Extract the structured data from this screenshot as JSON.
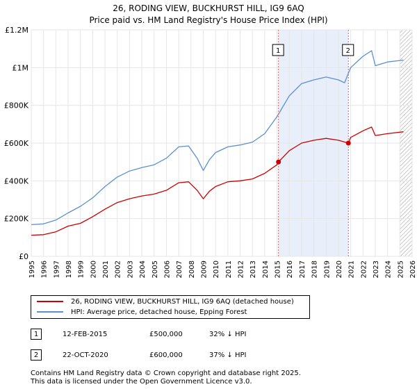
{
  "header": {
    "title": "26, RODING VIEW, BUCKHURST HILL, IG9 6AQ",
    "subtitle": "Price paid vs. HM Land Registry's House Price Index (HPI)"
  },
  "colors": {
    "property_line": "#cc0000",
    "hpi_line": "#5b8fd0",
    "shaded_span": "#e8eefa",
    "marker_line": "#e06060"
  },
  "chart_data": {
    "type": "line",
    "title": "26, RODING VIEW, BUCKHURST HILL, IG9 6AQ",
    "subtitle": "Price paid vs. HM Land Registry's House Price Index (HPI)",
    "xlabel": "",
    "ylabel": "",
    "xlim": [
      1995,
      2026
    ],
    "ylim": [
      0,
      1200000
    ],
    "x_ticks": [
      1995,
      1996,
      1997,
      1998,
      1999,
      2000,
      2001,
      2002,
      2003,
      2004,
      2005,
      2006,
      2007,
      2008,
      2009,
      2010,
      2011,
      2012,
      2013,
      2014,
      2015,
      2016,
      2017,
      2018,
      2019,
      2020,
      2021,
      2022,
      2023,
      2024,
      2025,
      2026
    ],
    "y_ticks": [
      {
        "value": 0,
        "label": "£0"
      },
      {
        "value": 200000,
        "label": "£200K"
      },
      {
        "value": 400000,
        "label": "£400K"
      },
      {
        "value": 600000,
        "label": "£600K"
      },
      {
        "value": 800000,
        "label": "£800K"
      },
      {
        "value": 1000000,
        "label": "£1M"
      },
      {
        "value": 1200000,
        "label": "£1.2M"
      }
    ],
    "grid": true,
    "shaded_span": [
      2015.12,
      2020.81
    ],
    "hatched_from": 2025.0,
    "series": [
      {
        "name": "26, RODING VIEW, BUCKHURST HILL, IG9 6AQ (detached house)",
        "x": [
          1995,
          1996,
          1997,
          1998,
          1999,
          2000,
          2001,
          2002,
          2003,
          2004,
          2005,
          2006,
          2007,
          2007.8,
          2008.5,
          2009,
          2009.5,
          2010,
          2011,
          2012,
          2013,
          2014,
          2015,
          2015.12,
          2016,
          2017,
          2018,
          2019,
          2020,
          2020.81,
          2021,
          2022,
          2022.7,
          2023,
          2024,
          2025.3
        ],
        "values": [
          112000,
          115000,
          130000,
          160000,
          175000,
          210000,
          250000,
          285000,
          305000,
          320000,
          330000,
          350000,
          390000,
          395000,
          350000,
          305000,
          345000,
          370000,
          395000,
          400000,
          410000,
          440000,
          485000,
          500000,
          560000,
          600000,
          615000,
          625000,
          615000,
          600000,
          630000,
          665000,
          685000,
          640000,
          650000,
          660000
        ]
      },
      {
        "name": "HPI: Average price, detached house, Epping Forest",
        "x": [
          1995,
          1996,
          1997,
          1998,
          1999,
          2000,
          2001,
          2002,
          2003,
          2004,
          2005,
          2006,
          2007,
          2007.8,
          2008.5,
          2009,
          2009.5,
          2010,
          2011,
          2012,
          2013,
          2014,
          2015,
          2016,
          2017,
          2018,
          2019,
          2020,
          2020.5,
          2021,
          2022,
          2022.7,
          2023,
          2024,
          2025.3
        ],
        "values": [
          168000,
          172000,
          192000,
          230000,
          265000,
          310000,
          370000,
          420000,
          452000,
          470000,
          485000,
          520000,
          580000,
          585000,
          520000,
          455000,
          512000,
          550000,
          580000,
          590000,
          605000,
          650000,
          740000,
          850000,
          915000,
          935000,
          950000,
          935000,
          920000,
          1000000,
          1060000,
          1090000,
          1010000,
          1030000,
          1040000
        ]
      }
    ],
    "annotations": [
      {
        "label": "1",
        "x": 2015.12,
        "value": 500000
      },
      {
        "label": "2",
        "x": 2020.81,
        "value": 600000
      }
    ]
  },
  "legend": {
    "property_label": "26, RODING VIEW, BUCKHURST HILL, IG9 6AQ (detached house)",
    "hpi_label": "HPI: Average price, detached house, Epping Forest"
  },
  "sales": [
    {
      "num": "1",
      "date": "12-FEB-2015",
      "price": "£500,000",
      "hpi": "32% ↓ HPI"
    },
    {
      "num": "2",
      "date": "22-OCT-2020",
      "price": "£600,000",
      "hpi": "37% ↓ HPI"
    }
  ],
  "footer": {
    "line1": "Contains HM Land Registry data © Crown copyright and database right 2025.",
    "line2": "This data is licensed under the Open Government Licence v3.0."
  }
}
